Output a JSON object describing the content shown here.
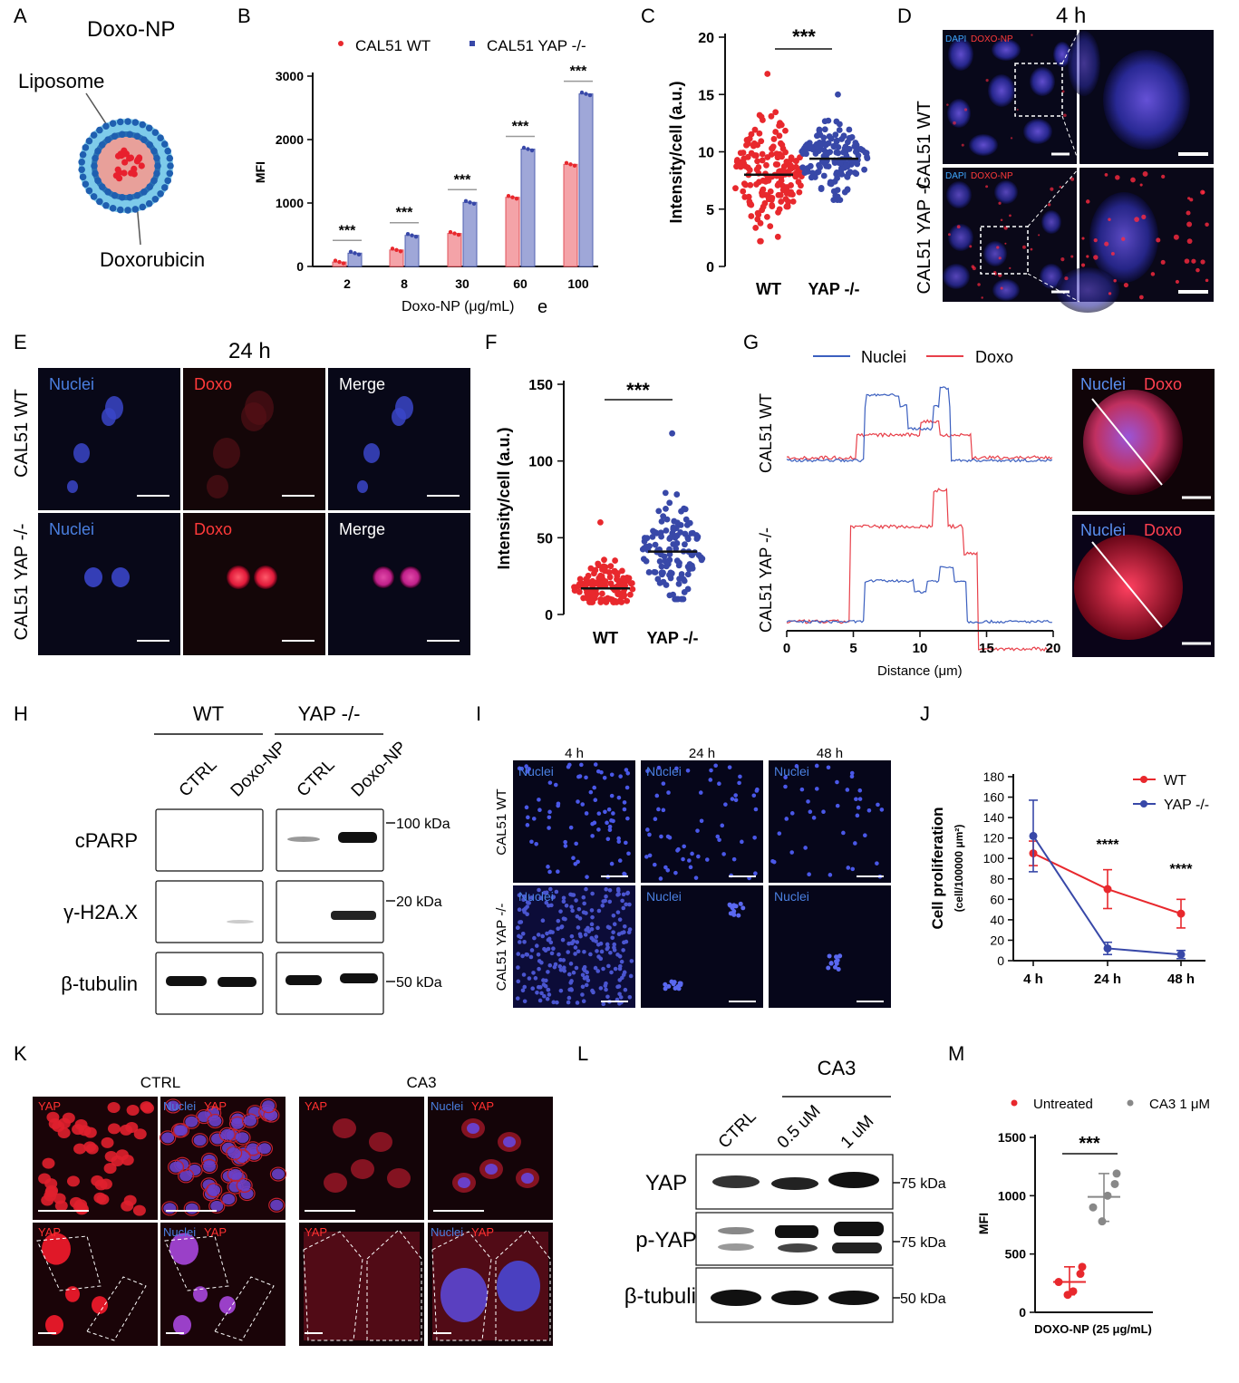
{
  "labels": [
    "A",
    "B",
    "C",
    "D",
    "E",
    "F",
    "G",
    "H",
    "I",
    "J",
    "K",
    "L",
    "M"
  ],
  "panelA": {
    "title": "Doxo-NP",
    "liposome": "Liposome",
    "doxorubicin": "Doxorubicin"
  },
  "panelD": {
    "time": "4 h",
    "dapi": "DAPI",
    "doxo_np": "DOXO-NP",
    "row_wt": "CAL51 WT",
    "row_ko": "CAL51 YAP -/-"
  },
  "panelE": {
    "time": "24 h",
    "nuclei": "Nuclei",
    "doxo": "Doxo",
    "merge": "Merge",
    "row_wt": "CAL51 WT",
    "row_ko": "CAL51 YAP -/-"
  },
  "panelG": {
    "nuclei": "Nuclei",
    "doxo": "Doxo",
    "row_wt": "CAL51 WT",
    "row_ko": "CAL51 YAP -/-",
    "xlabel": "Distance (μm)"
  },
  "panelH": {
    "wt": "WT",
    "ko": "YAP -/-",
    "lanes": [
      "CTRL",
      "Doxo-NP",
      "CTRL",
      "Doxo-NP"
    ],
    "rows": [
      "cPARP",
      "γ-H2A.X",
      "β-tubulin"
    ],
    "markers": [
      "100 kDa",
      "20 kDa",
      "50 kDa"
    ]
  },
  "panelI": {
    "times": [
      "4 h",
      "24 h",
      "48 h"
    ],
    "nuclei": "Nuclei",
    "row_wt": "CAL51 WT",
    "row_ko": "CAL51 YAP -/-"
  },
  "panelK": {
    "ctrl": "CTRL",
    "ca3": "CA3",
    "yap": "YAP",
    "nuclei": "Nuclei"
  },
  "panelL": {
    "ca3": "CA3",
    "lanes": [
      "CTRL",
      "0.5 uM",
      "1 uM"
    ],
    "rows": [
      "YAP",
      "p-YAP",
      "β-tubulin"
    ],
    "markers": [
      "75 kDa",
      "75 kDa",
      "50 kDa"
    ]
  },
  "chart_data": [
    {
      "panel": "B",
      "type": "bar",
      "categories": [
        "2",
        "8",
        "30",
        "60",
        "100"
      ],
      "series": [
        {
          "name": "CAL51 WT",
          "values": [
            70,
            260,
            520,
            1090,
            1610
          ],
          "color": "#f4a3a8"
        },
        {
          "name": "CAL51 YAP -/-",
          "values": [
            210,
            490,
            1010,
            1850,
            2720
          ],
          "color": "#9fa7d8"
        }
      ],
      "significance": [
        "***",
        "***",
        "***",
        "***",
        "***"
      ],
      "ylabel": "MFI",
      "xlabel": "Doxo-NP (μg/mL)",
      "xlabel_extra": "e",
      "ylim": [
        0,
        3000
      ],
      "yticks": [
        0,
        1000,
        2000,
        3000
      ]
    },
    {
      "panel": "C",
      "type": "scatter",
      "categories": [
        "WT",
        "YAP -/-"
      ],
      "medians": [
        8.0,
        9.4
      ],
      "ranges": [
        [
          2.2,
          16.8
        ],
        [
          5.8,
          15.0
        ]
      ],
      "colors": [
        "#e8282d",
        "#3848a8"
      ],
      "ylabel": "Intensity/cell (a.u.)",
      "ylim": [
        0,
        20
      ],
      "yticks": [
        0,
        5,
        10,
        15,
        20
      ],
      "significance": "***"
    },
    {
      "panel": "F",
      "type": "scatter",
      "categories": [
        "WT",
        "YAP -/-"
      ],
      "medians": [
        17,
        41
      ],
      "ranges": [
        [
          8,
          60
        ],
        [
          10,
          118
        ]
      ],
      "colors": [
        "#e8282d",
        "#3848a8"
      ],
      "ylabel": "Intensity/cell (a.u.)",
      "ylim": [
        0,
        150
      ],
      "yticks": [
        0,
        50,
        100,
        150
      ],
      "significance": "***"
    },
    {
      "panel": "G",
      "type": "line",
      "legend": [
        "Nuclei",
        "Doxo"
      ],
      "colors": [
        "#3b5fbf",
        "#e8404a"
      ],
      "xlabel": "Distance (μm)",
      "xlim": [
        0,
        20
      ],
      "xticks": [
        0,
        5,
        10,
        15,
        20
      ]
    },
    {
      "panel": "J",
      "type": "line",
      "categories": [
        "4 h",
        "24 h",
        "48 h"
      ],
      "series": [
        {
          "name": "WT",
          "values": [
            105,
            70,
            46
          ],
          "err": [
            12,
            19,
            14
          ],
          "color": "#e8282d"
        },
        {
          "name": "YAP -/-",
          "values": [
            122,
            12,
            6
          ],
          "err": [
            35,
            6,
            4
          ],
          "color": "#3848a8"
        }
      ],
      "significance": [
        "",
        "****",
        "****"
      ],
      "ylabel": "Cell proliferation",
      "ylabel2": "(cell/100000 μm²)",
      "ylim": [
        0,
        180
      ],
      "yticks": [
        0,
        20,
        40,
        60,
        80,
        100,
        120,
        140,
        160,
        180
      ]
    },
    {
      "panel": "M",
      "type": "scatter",
      "categories": [
        "Untreated",
        "CA3 1 μM"
      ],
      "series": [
        {
          "name": "Untreated",
          "values": [
            150,
            260,
            330,
            390,
            180
          ],
          "median": 260,
          "color": "#e8282d"
        },
        {
          "name": "CA3 1 μM",
          "values": [
            780,
            900,
            1100,
            1190,
            1000
          ],
          "median": 990,
          "color": "#888888"
        }
      ],
      "ylabel": "MFI",
      "xlabel": "DOXO-NP (25 μg/mL)",
      "ylim": [
        0,
        1500
      ],
      "yticks": [
        0,
        500,
        1000,
        1500
      ],
      "significance": "***"
    }
  ]
}
